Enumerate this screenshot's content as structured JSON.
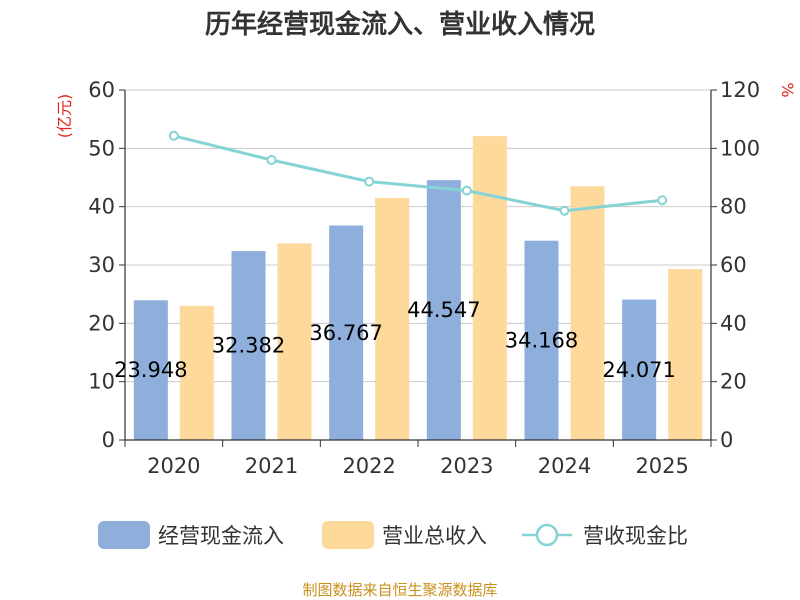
{
  "chart_data": {
    "type": "bar",
    "title": "历年经营现金流入、营业收入情况",
    "categories": [
      "2020",
      "2021",
      "2022",
      "2023",
      "2024",
      "2025"
    ],
    "y_left": {
      "unit_label": "(亿元)",
      "ylim": [
        0,
        60
      ],
      "ticks": [
        "0",
        "10",
        "20",
        "30",
        "40",
        "50",
        "60"
      ]
    },
    "y_right": {
      "unit_label": "%",
      "ylim": [
        0,
        120
      ],
      "ticks": [
        "0",
        "20",
        "40",
        "60",
        "80",
        "100",
        "120"
      ]
    },
    "series": [
      {
        "name": "经营现金流入",
        "type": "bar",
        "axis": "left",
        "color": "#8eaedb",
        "values": [
          23.948,
          32.382,
          36.767,
          44.547,
          34.168,
          24.071
        ],
        "labels": [
          "23.948",
          "32.382",
          "36.767",
          "44.547",
          "34.168",
          "24.071"
        ]
      },
      {
        "name": "营业总收入",
        "type": "bar",
        "axis": "left",
        "color": "#fdd99b",
        "values": [
          23.0,
          33.7,
          41.5,
          52.1,
          43.5,
          29.3
        ]
      },
      {
        "name": "营收现金比",
        "type": "line",
        "axis": "right",
        "color": "#86d3d6",
        "values": [
          104.3,
          96.0,
          88.6,
          85.5,
          78.6,
          82.2
        ]
      }
    ],
    "grid": true,
    "legend_position": "bottom"
  },
  "footer": {
    "source": "制图数据来自恒生聚源数据库"
  }
}
